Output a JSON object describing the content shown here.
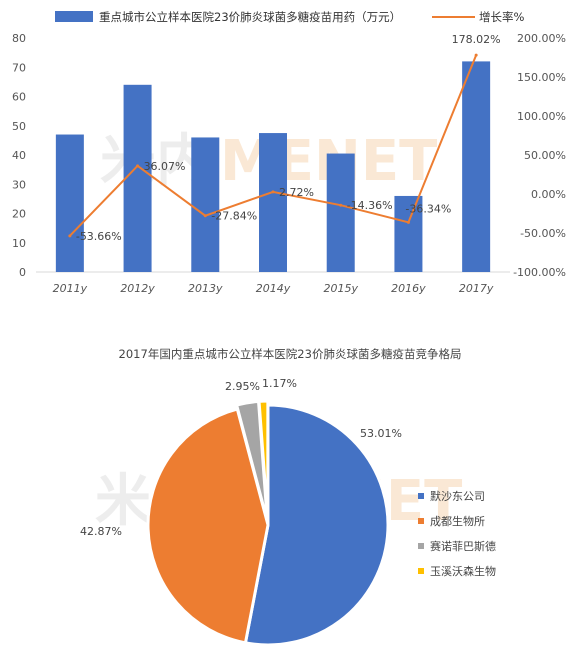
{
  "chart_data": [
    {
      "type": "bar",
      "categories": [
        "2011y",
        "2012y",
        "2013y",
        "2014y",
        "2015y",
        "2016y",
        "2017y"
      ],
      "series": [
        {
          "name": "重点城市公立样本医院23价肺炎球菌多糖疫苗用药（万元）",
          "values": [
            47,
            64,
            46,
            47.5,
            40.5,
            26,
            72
          ],
          "color": "#4472c4",
          "axis": "left"
        },
        {
          "name": "增长率%",
          "type": "line",
          "values": [
            -53.66,
            36.07,
            -27.84,
            2.72,
            -14.36,
            -36.34,
            178.02
          ],
          "value_labels": [
            "-53.66%",
            "36.07%",
            "-27.84%",
            "2.72%",
            "-14.36%",
            "-36.34%",
            "178.02%"
          ],
          "color": "#ed7d31",
          "axis": "right"
        }
      ],
      "ylim": [
        0,
        80
      ],
      "yticks": [
        "0",
        "10",
        "20",
        "30",
        "40",
        "50",
        "60",
        "70",
        "80"
      ],
      "y2lim": [
        -100,
        200
      ],
      "y2ticks": [
        "-100.00%",
        "-50.00%",
        "0.00%",
        "50.00%",
        "100.00%",
        "150.00%",
        "200.00%"
      ],
      "legend": "top",
      "grid": false
    },
    {
      "type": "pie",
      "title": "2017年国内重点城市公立样本医院23价肺炎球菌多糖疫苗竞争格局",
      "slices": [
        {
          "name": "默沙东公司",
          "value": 53.01,
          "label": "53.01%",
          "color": "#4472c4"
        },
        {
          "name": "成都生物所",
          "value": 42.87,
          "label": "42.87%",
          "color": "#ed7d31"
        },
        {
          "name": "赛诺菲巴斯德",
          "value": 2.95,
          "label": "2.95%",
          "color": "#a5a5a5"
        },
        {
          "name": "玉溪沃森生物",
          "value": 1.17,
          "label": "1.17%",
          "color": "#ffc000"
        }
      ],
      "legend": "right"
    }
  ],
  "watermark": {
    "part1": "米内",
    "part2": "MENET"
  }
}
